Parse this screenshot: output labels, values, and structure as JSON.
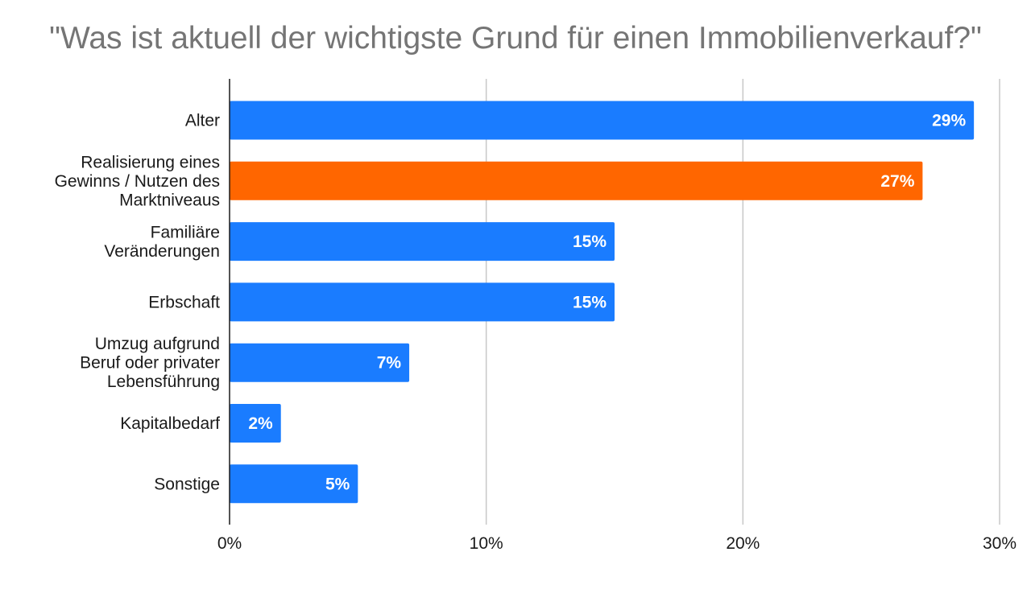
{
  "chart_data": {
    "type": "bar",
    "orientation": "horizontal",
    "title": "\"Was ist aktuell der wichtigste Grund für einen Immobilienverkauf?\"",
    "categories": [
      "Alter",
      "Realisierung eines Gewinns / Nutzen des Marktniveaus",
      "Familiäre Veränderungen",
      "Erbschaft",
      "Umzug aufgrund Beruf oder privater Lebensführung",
      "Kapitalbedarf",
      "Sonstige"
    ],
    "category_label_lines": [
      [
        "Alter"
      ],
      [
        "Realisierung eines",
        "Gewinns / Nutzen des",
        "Marktniveaus"
      ],
      [
        "Familiäre",
        "Veränderungen"
      ],
      [
        "Erbschaft"
      ],
      [
        "Umzug aufgrund",
        "Beruf oder privater",
        "Lebensführung"
      ],
      [
        "Kapitalbedarf"
      ],
      [
        "Sonstige"
      ]
    ],
    "values": [
      29,
      27,
      15,
      15,
      7,
      2,
      5
    ],
    "data_labels": [
      "29%",
      "27%",
      "15%",
      "15%",
      "7%",
      "2%",
      "5%"
    ],
    "bar_colors": [
      "#1a7cff",
      "#ff6600",
      "#1a7cff",
      "#1a7cff",
      "#1a7cff",
      "#1a7cff",
      "#1a7cff"
    ],
    "xlim": [
      0,
      30
    ],
    "xticks": [
      0,
      10,
      20,
      30
    ],
    "xtick_labels": [
      "0%",
      "10%",
      "20%",
      "30%"
    ],
    "xlabel": "",
    "ylabel": "",
    "grid": true,
    "legend": "none"
  }
}
